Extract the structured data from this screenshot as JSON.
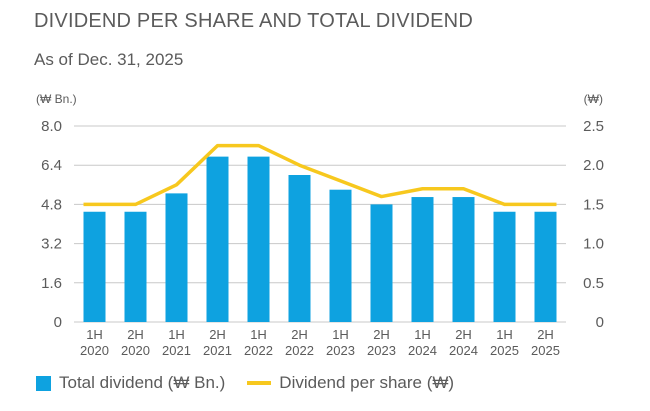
{
  "title": "DIVIDEND PER SHARE AND TOTAL DIVIDEND",
  "subtitle": "As of Dec. 31, 2025",
  "colors": {
    "bar": "#0ea2e0",
    "line": "#f7c81e",
    "text": "#5b5b5b",
    "grid": "#c8c8c8"
  },
  "chart_data": {
    "type": "bar",
    "left_axis_unit": "(₩ Bn.)",
    "right_axis_unit": "(₩)",
    "categories": [
      [
        "1H",
        "2020"
      ],
      [
        "2H",
        "2020"
      ],
      [
        "1H",
        "2021"
      ],
      [
        "2H",
        "2021"
      ],
      [
        "1H",
        "2022"
      ],
      [
        "2H",
        "2022"
      ],
      [
        "1H",
        "2023"
      ],
      [
        "2H",
        "2023"
      ],
      [
        "1H",
        "2024"
      ],
      [
        "2H",
        "2024"
      ],
      [
        "1H",
        "2025"
      ],
      [
        "2H",
        "2025"
      ]
    ],
    "left_ticks": [
      "0",
      "1.6",
      "3.2",
      "4.8",
      "6.4",
      "8.0"
    ],
    "right_ticks": [
      "0",
      "0.5",
      "1.0",
      "1.5",
      "2.0",
      "2.5"
    ],
    "ylim_left": [
      0,
      8.0
    ],
    "ylim_right": [
      0,
      2.5
    ],
    "grid": true,
    "legend_position": "bottom",
    "series": [
      {
        "name": "Total dividend (₩ Bn.)",
        "type": "bar",
        "axis": "left",
        "values": [
          4.5,
          4.5,
          5.25,
          6.75,
          6.75,
          6.0,
          5.4,
          4.8,
          5.1,
          5.1,
          4.5,
          4.5
        ]
      },
      {
        "name": "Dividend per share (₩)",
        "type": "line",
        "axis": "right",
        "values": [
          1.5,
          1.5,
          1.75,
          2.25,
          2.25,
          2.0,
          1.8,
          1.6,
          1.7,
          1.7,
          1.5,
          1.5
        ]
      }
    ]
  }
}
